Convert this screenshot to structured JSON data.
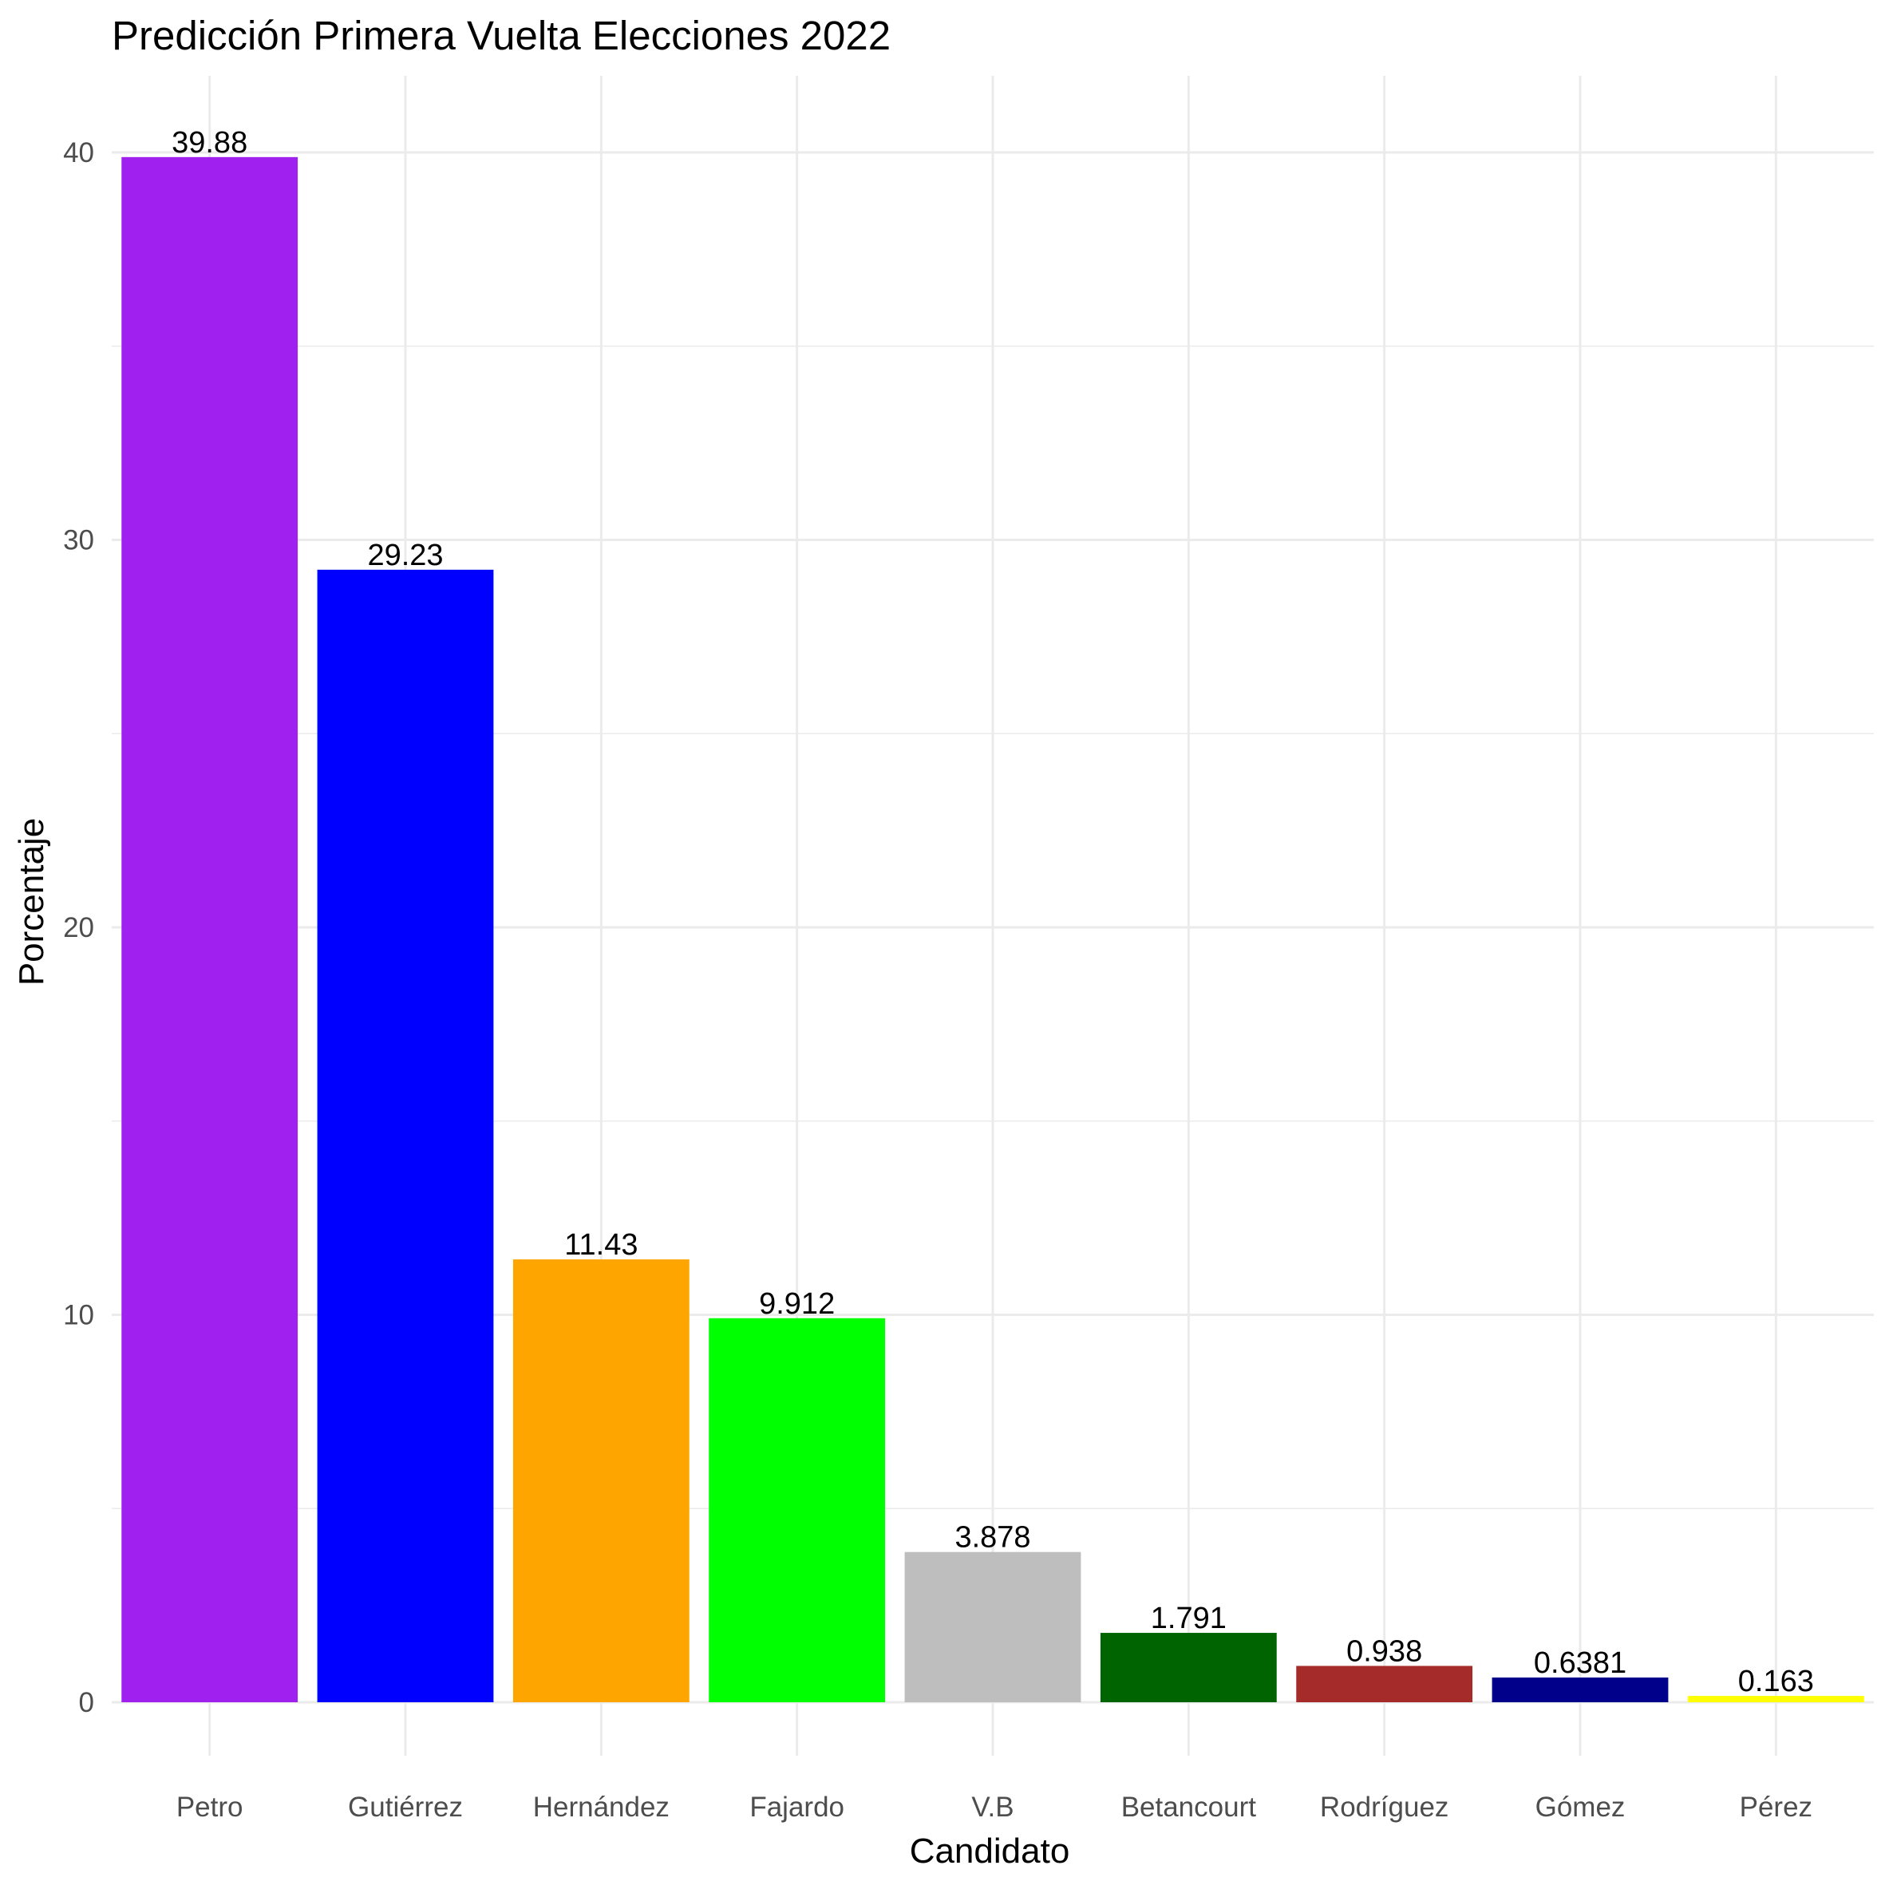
{
  "chart_data": {
    "type": "bar",
    "title": "Predicción Primera Vuelta Elecciones 2022",
    "xlabel": "Candidato",
    "ylabel": "Porcentaje",
    "categories": [
      "Petro",
      "Gutiérrez",
      "Hernández",
      "Fajardo",
      "V.B",
      "Betancourt",
      "Rodríguez",
      "Gómez",
      "Pérez"
    ],
    "values": [
      39.88,
      29.23,
      11.43,
      9.912,
      3.878,
      1.791,
      0.938,
      0.6381,
      0.163
    ],
    "data_labels": [
      "39.88",
      "29.23",
      "11.43",
      "9.912",
      "3.878",
      "1.791",
      "0.938",
      "0.6381",
      "0.163"
    ],
    "colors": [
      "#a020f0",
      "#0000ff",
      "#ffa500",
      "#00ff00",
      "#bebebe",
      "#006400",
      "#a52a2a",
      "#00008b",
      "#ffff00"
    ],
    "yticks": [
      0,
      10,
      20,
      30,
      40
    ],
    "ylim": [
      0,
      41.5
    ],
    "grid": true,
    "legend": "none"
  }
}
